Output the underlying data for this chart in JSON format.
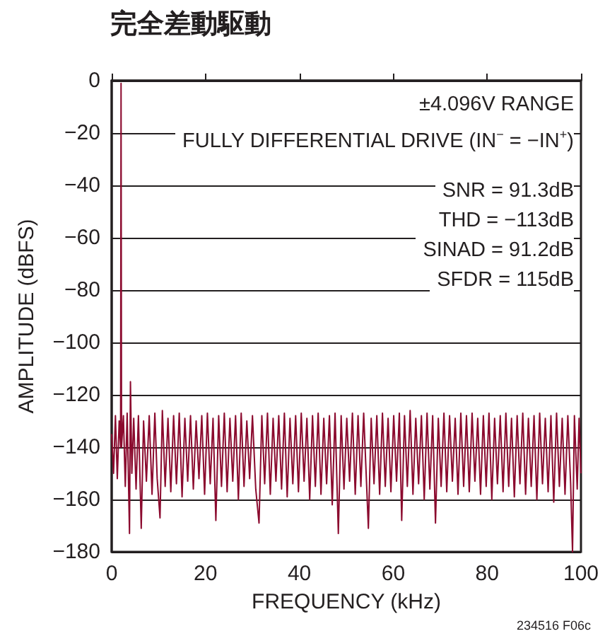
{
  "chart_data": {
    "type": "line",
    "title": "完全差動駆動",
    "xlabel": "FREQUENCY (kHz)",
    "ylabel": "AMPLITUDE (dBFS)",
    "annotations": [
      "±4.096V RANGE",
      "FULLY DIFFERENTIAL DRIVE (IN$^{−}$ = −IN$^{+}$)",
      "SNR = 91.3dB",
      "THD = −113dB",
      "SINAD = 91.2dB",
      "SFDR = 115dB",
      "234516 F06c"
    ],
    "xlim": [
      0,
      100
    ],
    "xticks": [
      0,
      20,
      40,
      60,
      80,
      100
    ],
    "ylim": [
      -180,
      0
    ],
    "yticks": [
      -180,
      -160,
      -140,
      -120,
      -100,
      -80,
      -60,
      -40,
      -20,
      0
    ],
    "grid": "y",
    "series": [
      {
        "color": "#8b0a2e",
        "x": [
          0,
          0.4,
          0.8,
          1.2,
          1.6,
          1.9,
          2.0,
          2.1,
          2.5,
          2.9,
          3.3,
          3.8,
          4.0,
          4.3,
          4.7,
          5.2,
          5.7,
          6.3,
          6.8,
          7.4,
          8.0,
          8.6,
          9.2,
          9.7,
          10.3,
          10.8,
          11.4,
          12.0,
          12.6,
          13.2,
          13.8,
          14.4,
          15.0,
          15.6,
          16.2,
          16.8,
          17.4,
          18.0,
          18.6,
          19.2,
          19.8,
          20.4,
          21.0,
          21.6,
          22.2,
          22.8,
          23.4,
          24.0,
          24.6,
          25.2,
          25.8,
          26.4,
          27.0,
          27.6,
          28.2,
          28.8,
          29.4,
          30.0,
          30.7,
          31.4,
          32.0,
          32.6,
          33.2,
          33.8,
          34.4,
          35.0,
          35.6,
          36.2,
          36.8,
          37.4,
          38.0,
          38.6,
          39.2,
          39.8,
          40.4,
          41.0,
          41.6,
          42.2,
          42.8,
          43.4,
          44.0,
          44.6,
          45.2,
          45.8,
          46.4,
          47.0,
          47.6,
          48.3,
          48.9,
          49.5,
          50.1,
          50.7,
          51.3,
          51.9,
          52.5,
          53.1,
          53.7,
          54.7,
          55.3,
          55.9,
          56.5,
          57.1,
          57.7,
          58.3,
          58.9,
          59.5,
          60.1,
          60.7,
          61.3,
          61.8,
          62.4,
          63.0,
          63.6,
          64.2,
          64.8,
          65.4,
          66.0,
          66.6,
          67.2,
          67.8,
          68.4,
          69.0,
          69.6,
          70.2,
          70.8,
          71.4,
          72.0,
          72.6,
          73.2,
          73.8,
          74.4,
          75.0,
          75.6,
          76.2,
          76.8,
          77.4,
          78.0,
          78.6,
          79.2,
          79.8,
          80.4,
          81.0,
          81.6,
          82.2,
          82.8,
          83.4,
          84.0,
          84.6,
          85.2,
          85.8,
          86.4,
          87.0,
          87.6,
          88.2,
          88.8,
          89.4,
          90.0,
          90.6,
          91.2,
          91.8,
          92.4,
          93.0,
          93.6,
          94.2,
          94.8,
          95.4,
          96.0,
          96.6,
          97.2,
          97.8,
          98.2,
          98.6,
          99.2,
          99.6,
          100
        ],
        "values": [
          -135,
          -150,
          -128,
          -152,
          -130,
          -140,
          -1,
          -140,
          -128,
          -155,
          -127,
          -173,
          -115,
          -150,
          -129,
          -156,
          -128,
          -171,
          -130,
          -153,
          -128,
          -158,
          -127,
          -152,
          -167,
          -126,
          -155,
          -129,
          -157,
          -128,
          -154,
          -127,
          -159,
          -129,
          -153,
          -128,
          -156,
          -130,
          -152,
          -128,
          -158,
          -127,
          -154,
          -129,
          -168,
          -128,
          -155,
          -127,
          -157,
          -129,
          -153,
          -128,
          -160,
          -127,
          -155,
          -130,
          -152,
          -128,
          -156,
          -169,
          -128,
          -154,
          -127,
          -158,
          -129,
          -153,
          -128,
          -156,
          -127,
          -159,
          -129,
          -154,
          -128,
          -157,
          -127,
          -153,
          -129,
          -160,
          -128,
          -155,
          -127,
          -158,
          -129,
          -154,
          -128,
          -162,
          -127,
          -173,
          -128,
          -156,
          -129,
          -153,
          -127,
          -158,
          -128,
          -155,
          -127,
          -171,
          -129,
          -154,
          -128,
          -158,
          -127,
          -155,
          -129,
          -157,
          -128,
          -153,
          -127,
          -168,
          -128,
          -155,
          -126,
          -158,
          -129,
          -154,
          -128,
          -160,
          -127,
          -156,
          -128,
          -169,
          -129,
          -155,
          -127,
          -157,
          -128,
          -153,
          -129,
          -158,
          -127,
          -155,
          -128,
          -157,
          -127,
          -153,
          -129,
          -158,
          -128,
          -155,
          -127,
          -160,
          -129,
          -154,
          -128,
          -157,
          -127,
          -155,
          -129,
          -159,
          -128,
          -154,
          -127,
          -158,
          -129,
          -155,
          -128,
          -160,
          -127,
          -154,
          -129,
          -157,
          -128,
          -161,
          -127,
          -155,
          -129,
          -158,
          -128,
          -154,
          -180,
          -128,
          -156,
          -129,
          -150
        ]
      }
    ]
  }
}
